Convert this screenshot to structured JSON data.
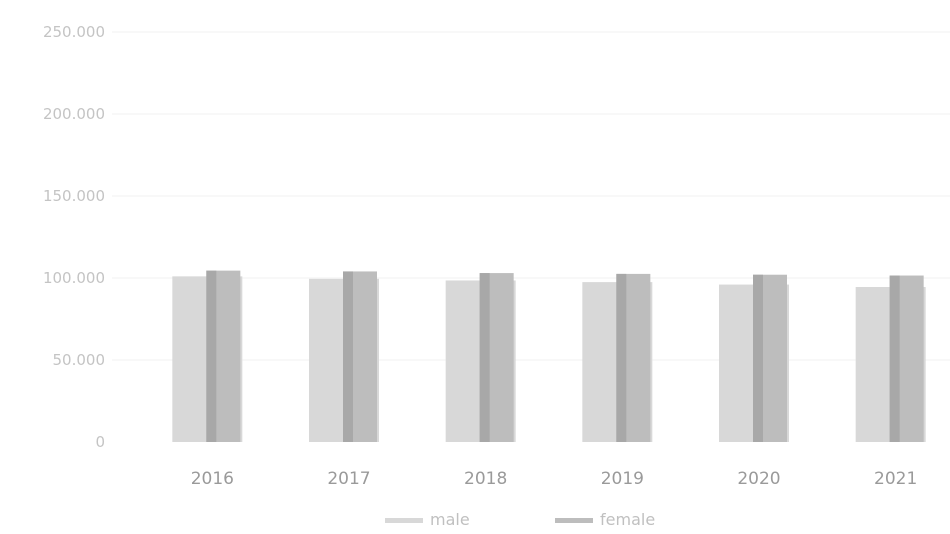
{
  "chart_data": {
    "type": "bar",
    "categories": [
      "2016",
      "2017",
      "2018",
      "2019",
      "2020",
      "2021"
    ],
    "series": [
      {
        "name": "male",
        "values": [
          101000,
          99500,
          98500,
          97500,
          96000,
          94500
        ],
        "color": "#d8d8d8"
      },
      {
        "name": "female",
        "values": [
          104500,
          104000,
          103000,
          102500,
          102000,
          101500
        ],
        "color": "#bdbdbd"
      }
    ],
    "ylim": [
      0,
      250000
    ],
    "yticks": [
      0,
      50000,
      100000,
      150000,
      200000,
      250000
    ],
    "ytick_labels": [
      "0",
      "50.000",
      "100.000",
      "150.000",
      "200.000",
      "250.000"
    ],
    "grid": true,
    "legend_position": "bottom",
    "title": "",
    "xlabel": "",
    "ylabel": ""
  }
}
